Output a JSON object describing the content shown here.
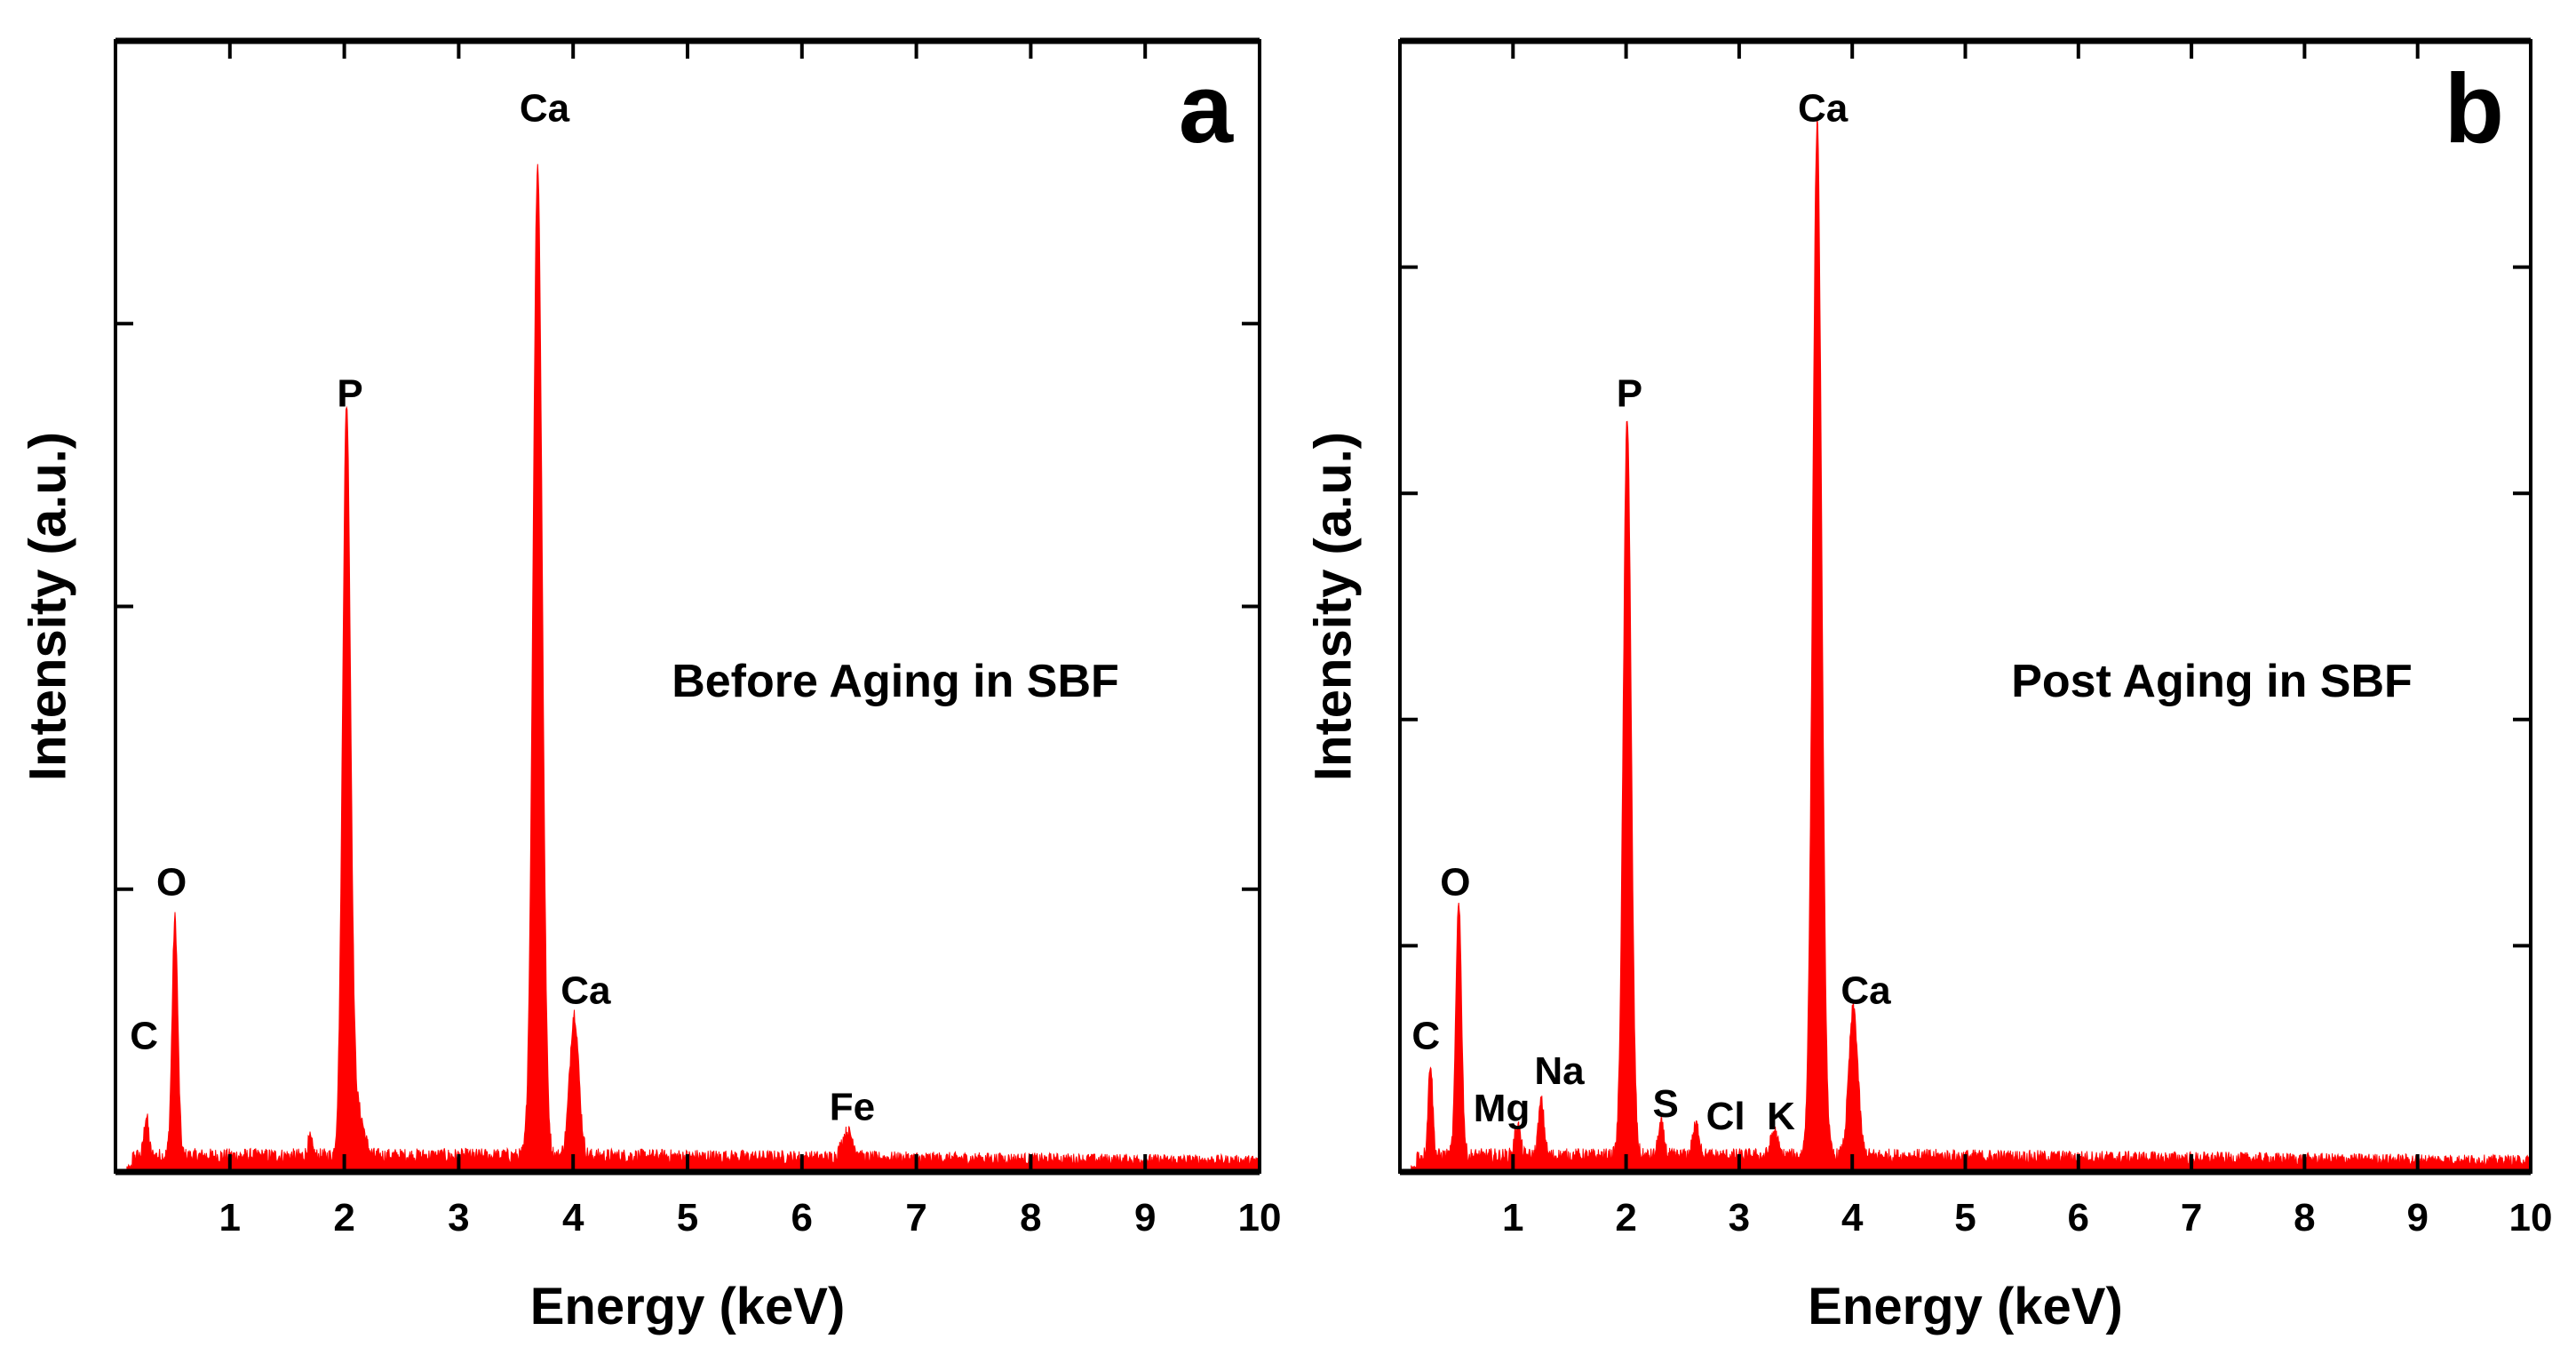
{
  "chart_data": [
    {
      "type": "area",
      "panel_label": "a",
      "annotation": "Before Aging in SBF",
      "xlabel": "Energy (keV)",
      "ylabel": "Intensity (a.u.)",
      "xlim": [
        0,
        10
      ],
      "ylim": [
        0,
        100
      ],
      "xticks": [
        "1",
        "2",
        "3",
        "4",
        "5",
        "6",
        "7",
        "8",
        "9",
        "10"
      ],
      "yticks": [
        25,
        50,
        75
      ],
      "grid": false,
      "color": "#ff0000",
      "background_level": 1.5,
      "peaks": [
        {
          "energy": 0.27,
          "height": 3.5,
          "width": 0.02
        },
        {
          "energy": 0.52,
          "height": 21,
          "width": 0.025
        },
        {
          "energy": 1.7,
          "height": 1.5,
          "width": 0.02
        },
        {
          "energy": 2.02,
          "height": 66,
          "width": 0.035
        },
        {
          "energy": 2.12,
          "height": 4,
          "width": 0.05
        },
        {
          "energy": 3.69,
          "height": 87.7,
          "width": 0.04
        },
        {
          "energy": 4.01,
          "height": 12.6,
          "width": 0.04
        },
        {
          "energy": 6.4,
          "height": 2.3,
          "width": 0.05
        }
      ],
      "peak_labels": [
        {
          "text": "C",
          "x": 0.25,
          "y": 11.8
        },
        {
          "text": "O",
          "x": 0.49,
          "y": 25.4
        },
        {
          "text": "P",
          "x": 2.05,
          "y": 68.6
        },
        {
          "text": "Ca",
          "x": 3.75,
          "y": 93.8
        },
        {
          "text": "Ca",
          "x": 4.11,
          "y": 15.8
        },
        {
          "text": "Fe",
          "x": 6.44,
          "y": 5.5
        }
      ]
    },
    {
      "type": "area",
      "panel_label": "b",
      "annotation": "Post Aging in SBF",
      "xlabel": "Energy (keV)",
      "ylabel": "Intensity (a.u.)",
      "xlim": [
        0,
        10
      ],
      "ylim": [
        0,
        100
      ],
      "xticks": [
        "1",
        "2",
        "3",
        "4",
        "5",
        "6",
        "7",
        "8",
        "9",
        "10"
      ],
      "yticks": [
        20,
        40,
        60,
        80
      ],
      "grid": false,
      "color": "#ff0000",
      "background_level": 1.5,
      "peaks": [
        {
          "energy": 0.27,
          "height": 8.3,
          "width": 0.02
        },
        {
          "energy": 0.52,
          "height": 22.7,
          "width": 0.025
        },
        {
          "energy": 1.04,
          "height": 2.8,
          "width": 0.025
        },
        {
          "energy": 1.25,
          "height": 4.8,
          "width": 0.025
        },
        {
          "energy": 2.01,
          "height": 65.5,
          "width": 0.035
        },
        {
          "energy": 2.31,
          "height": 2.8,
          "width": 0.025
        },
        {
          "energy": 2.62,
          "height": 2.7,
          "width": 0.03
        },
        {
          "energy": 3.31,
          "height": 2.2,
          "width": 0.03
        },
        {
          "energy": 3.69,
          "height": 91.3,
          "width": 0.04
        },
        {
          "energy": 4.01,
          "height": 13.1,
          "width": 0.04
        }
      ],
      "peak_labels": [
        {
          "text": "C",
          "x": 0.23,
          "y": 11.8
        },
        {
          "text": "O",
          "x": 0.49,
          "y": 25.4
        },
        {
          "text": "Mg",
          "x": 0.9,
          "y": 5.4
        },
        {
          "text": "Na",
          "x": 1.41,
          "y": 8.7
        },
        {
          "text": "P",
          "x": 2.03,
          "y": 68.6
        },
        {
          "text": "S",
          "x": 2.35,
          "y": 5.8
        },
        {
          "text": "Cl",
          "x": 2.88,
          "y": 4.7
        },
        {
          "text": "K",
          "x": 3.37,
          "y": 4.7
        },
        {
          "text": "Ca",
          "x": 3.74,
          "y": 93.8
        },
        {
          "text": "Ca",
          "x": 4.12,
          "y": 15.8
        }
      ]
    }
  ]
}
